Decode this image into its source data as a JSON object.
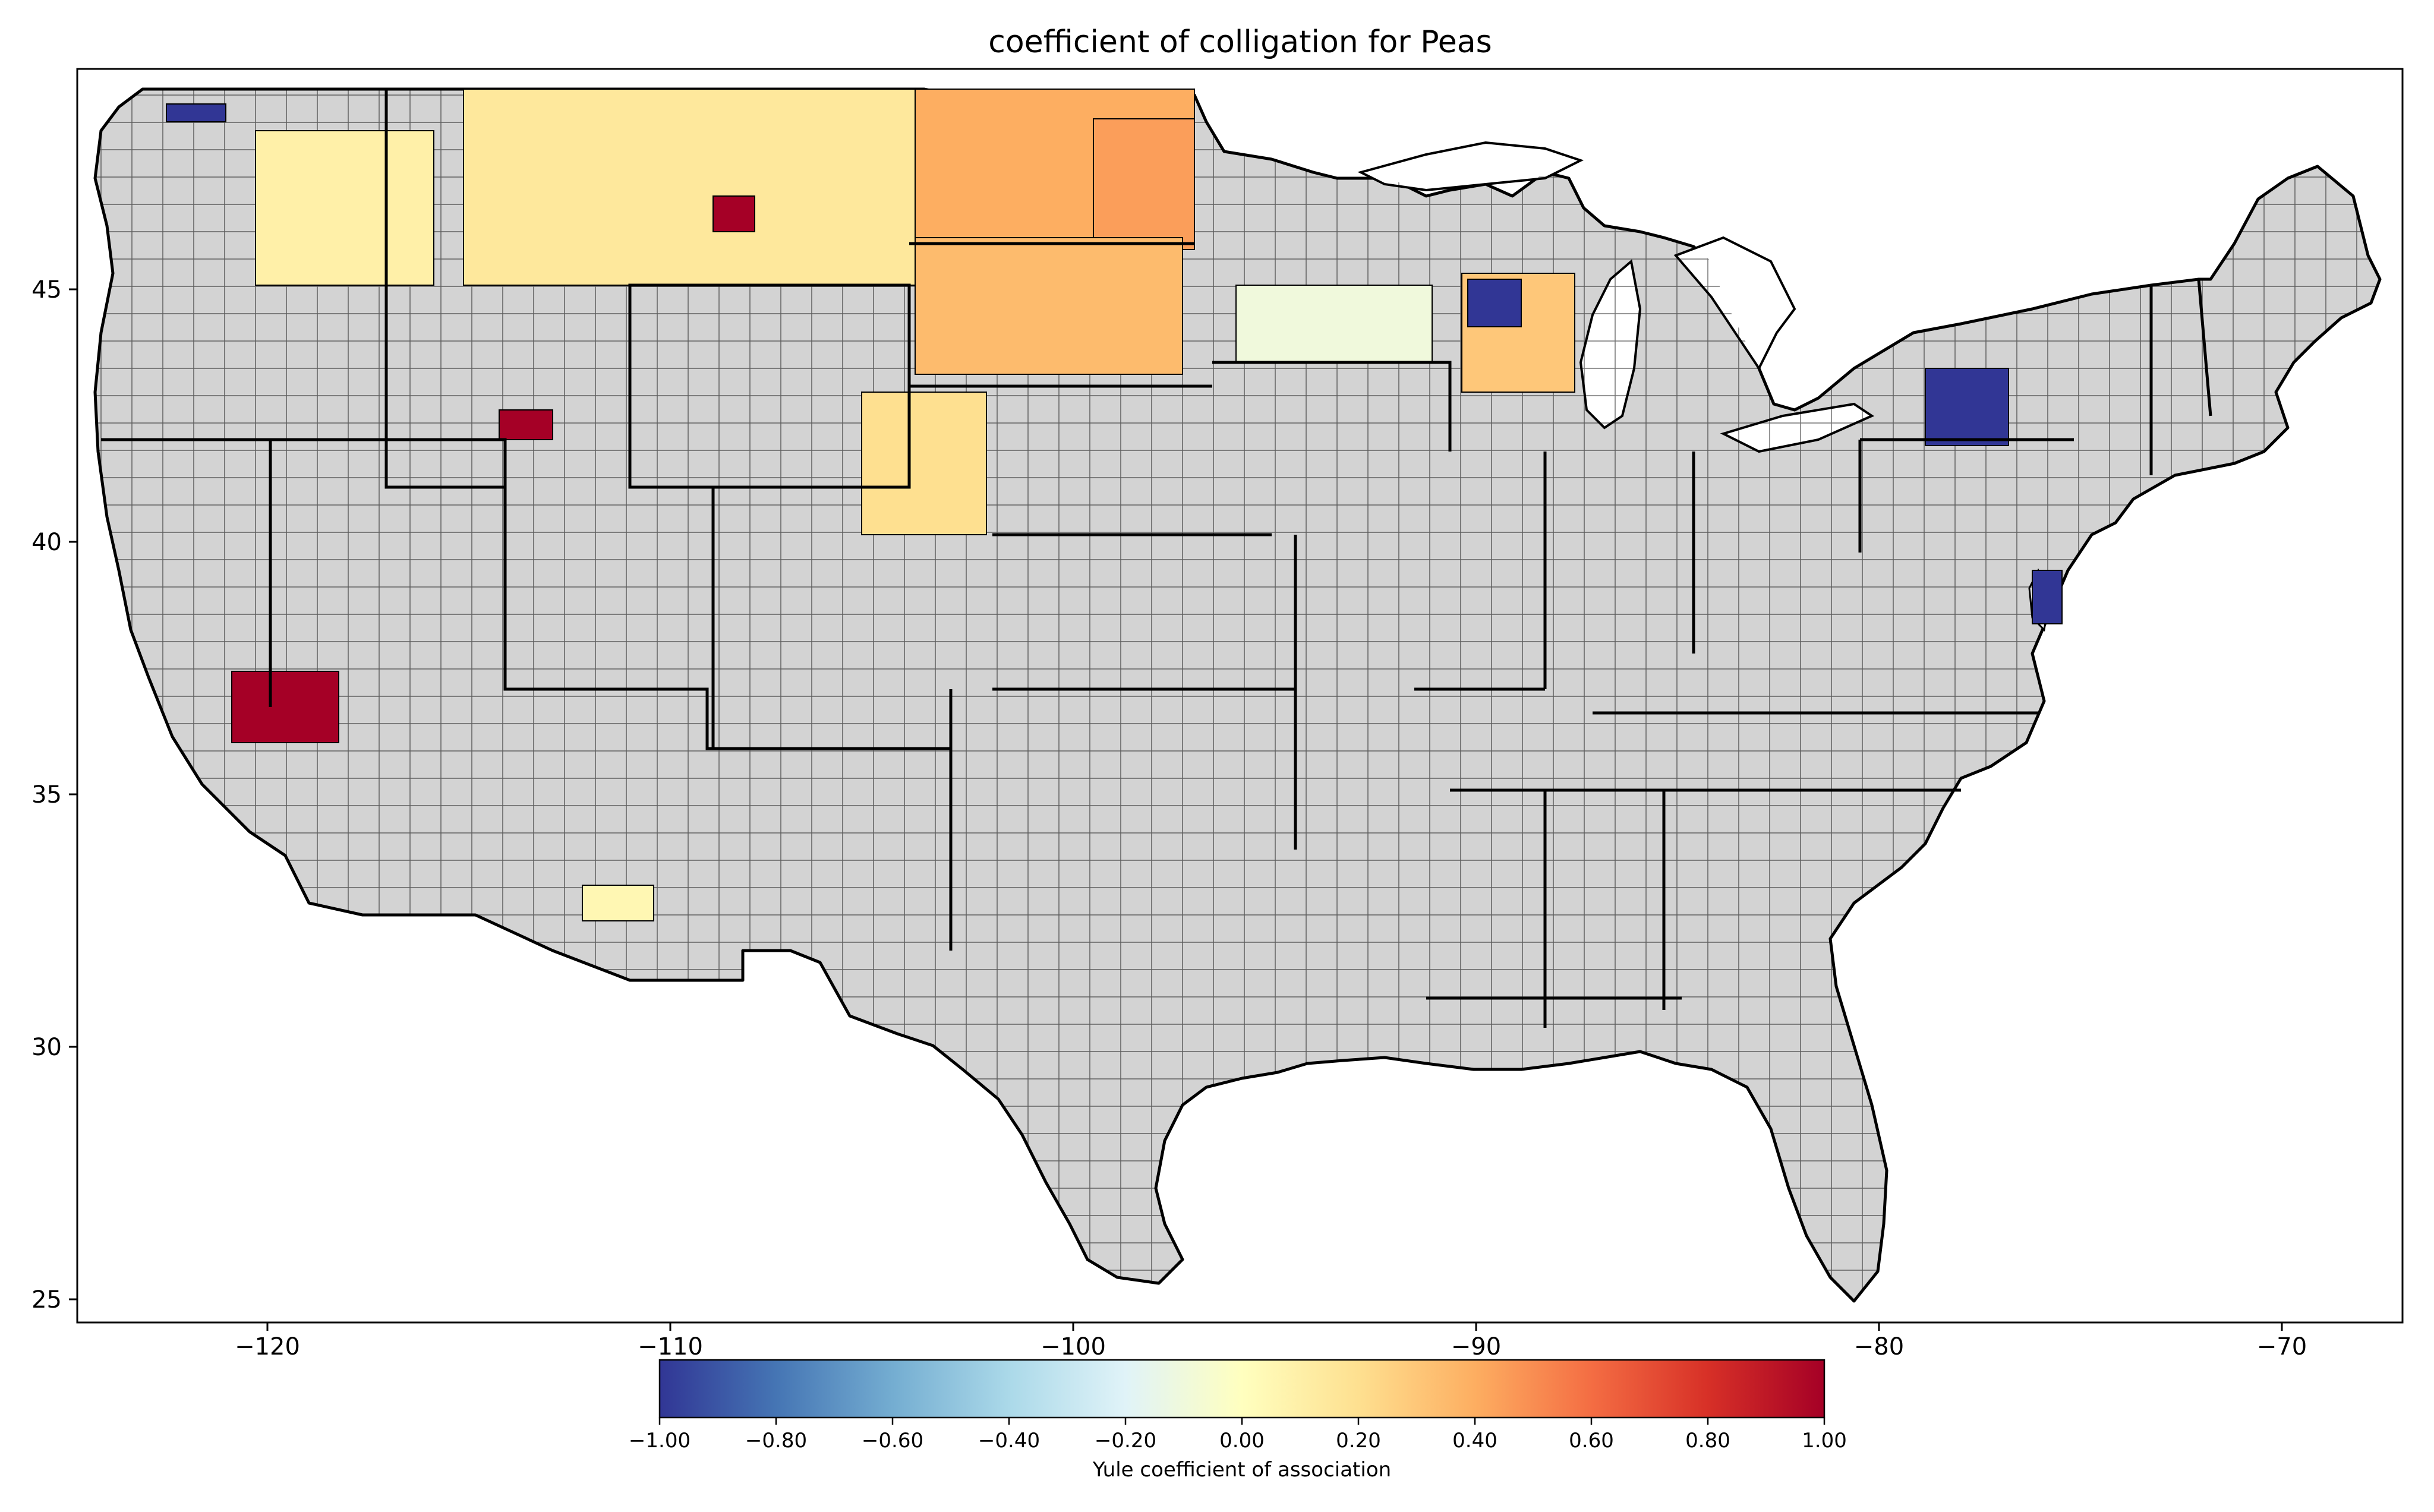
{
  "figure": {
    "title": "coefficient of colligation for Peas"
  },
  "map": {
    "type": "choropleth",
    "region": "contiguous United States, county level",
    "x_ticks": [
      "−120",
      "−110",
      "−100",
      "−90",
      "−80",
      "−70"
    ],
    "y_ticks": [
      "45",
      "40",
      "35",
      "30",
      "25"
    ],
    "no_data_color": "#d3d3d3",
    "border_color": "#000000"
  },
  "colorbar": {
    "label": "Yule coefficient of association",
    "colormap": "RdYlBu_r",
    "range": [
      -1.0,
      1.0
    ],
    "ticks": [
      "−1.00",
      "−0.80",
      "−0.60",
      "−0.40",
      "−0.20",
      "0.00",
      "0.20",
      "0.40",
      "0.60",
      "0.80",
      "1.00"
    ],
    "stops": [
      "#313695",
      "#4575b4",
      "#74add1",
      "#abd9e9",
      "#e0f3f8",
      "#ffffbf",
      "#fee090",
      "#fdae61",
      "#f46d43",
      "#d73027",
      "#a50026"
    ]
  },
  "colored_areas": [
    {
      "area": "Montana / North Dakota / northern Idaho",
      "value": 0.15
    },
    {
      "area": "eastern North Dakota",
      "value": 0.4
    },
    {
      "area": "Red River Valley, ND",
      "value": 0.45
    },
    {
      "area": "South Dakota",
      "value": 0.35
    },
    {
      "area": "Nebraska panhandle",
      "value": 0.2
    },
    {
      "area": "Palouse, WA / ID",
      "value": 0.1
    },
    {
      "area": "northern Washington",
      "value": -1.0
    },
    {
      "area": "southern Idaho",
      "value": 1.0
    },
    {
      "area": "central Montana",
      "value": 1.0
    },
    {
      "area": "southern Minnesota",
      "value": -0.1
    },
    {
      "area": "eastern Wisconsin",
      "value": 0.3
    },
    {
      "area": "central Wisconsin",
      "value": -1.0
    },
    {
      "area": "western New York",
      "value": -1.0
    },
    {
      "area": "Delmarva",
      "value": -1.0
    },
    {
      "area": "south-central California",
      "value": 1.0
    },
    {
      "area": "southern Arizona",
      "value": 0.05
    }
  ]
}
